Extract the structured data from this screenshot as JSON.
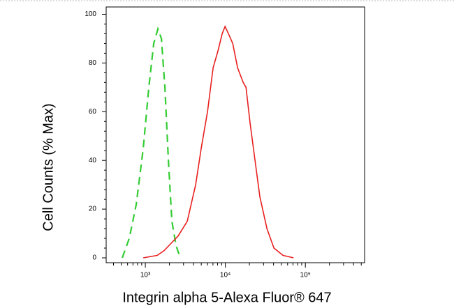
{
  "chart_data": {
    "type": "line",
    "x_label": "Integrin alpha 5-Alexa Fluor® 647",
    "y_label": "Cell Counts (% Max)",
    "x_scale": "log",
    "xlim": [
      324,
      550000
    ],
    "ylim": [
      -2,
      103
    ],
    "xticks": [
      {
        "value": 1000,
        "label": "10³"
      },
      {
        "value": 10000,
        "label": "10⁴"
      },
      {
        "value": 100000,
        "label": "10⁵"
      }
    ],
    "yticks": [
      0,
      20,
      40,
      60,
      80,
      100
    ],
    "grid": false,
    "series": [
      {
        "color": "#33cc33",
        "dash": true,
        "x": [
          515,
          630,
          770,
          942,
          1106,
          1273,
          1436,
          1588,
          1757,
          1941,
          2148,
          2421,
          2733
        ],
        "values": [
          0,
          8,
          22,
          45,
          70,
          88,
          94,
          90,
          70,
          40,
          15,
          5,
          0
        ]
      },
      {
        "color": "#e82020",
        "dash": false,
        "x": [
          942,
          1407,
          1721,
          2104,
          2572,
          3342,
          4254,
          4998,
          5989,
          7031,
          8091,
          9138,
          9908,
          10950,
          12356,
          14223,
          16708,
          18110,
          20426,
          23500,
          27050,
          33110,
          40460,
          52580,
          71120
        ],
        "values": [
          0,
          1,
          3,
          6,
          9,
          15,
          30,
          45,
          60,
          78,
          85,
          92,
          95,
          92,
          88,
          78,
          72,
          70,
          55,
          40,
          25,
          12,
          4,
          1,
          0
        ]
      }
    ]
  }
}
